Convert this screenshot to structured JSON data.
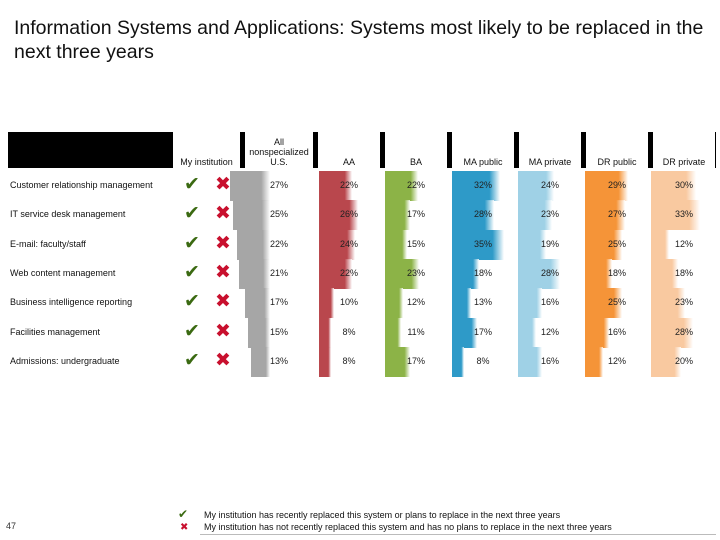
{
  "title": "Information Systems and Applications: Systems most likely to be replaced in the next three years",
  "page_number": "47",
  "colors": {
    "check": "#3b6a12",
    "cross": "#c8102e",
    "all_us": "#a6a6a6",
    "aa": "#b9474d",
    "ba": "#8cb347",
    "ma_public": "#2e9ac8",
    "ma_private": "#9fd1e6",
    "dr_public": "#f59438",
    "dr_private": "#f9c9a0"
  },
  "legend": {
    "check_icon": "check-icon",
    "cross_icon": "cross-icon",
    "check_text": "My institution has recently replaced this system or plans to replace in the next three years",
    "cross_text": "My institution has not recently replaced this system and has no plans to replace in the next three years"
  },
  "chart_data": {
    "type": "table",
    "title": "Information Systems and Applications: Systems most likely to be replaced in the next three years",
    "columns": [
      "My institution",
      "All nonspecialized U.S.",
      "AA",
      "BA",
      "MA public",
      "MA private",
      "DR public",
      "DR private"
    ],
    "rows": [
      "Customer relationship management",
      "IT service desk management",
      "E-mail: faculty/staff",
      "Web content management",
      "Business intelligence reporting",
      "Facilities management",
      "Admissions: undergraduate"
    ],
    "series": [
      {
        "name": "All nonspecialized U.S.",
        "values": [
          27,
          25,
          22,
          21,
          17,
          15,
          13
        ]
      },
      {
        "name": "AA",
        "values": [
          22,
          26,
          24,
          22,
          10,
          8,
          8
        ]
      },
      {
        "name": "BA",
        "values": [
          22,
          17,
          15,
          23,
          12,
          11,
          17
        ]
      },
      {
        "name": "MA public",
        "values": [
          32,
          28,
          35,
          18,
          13,
          17,
          8
        ]
      },
      {
        "name": "MA private",
        "values": [
          24,
          23,
          19,
          28,
          16,
          12,
          16
        ]
      },
      {
        "name": "DR public",
        "values": [
          29,
          27,
          25,
          18,
          25,
          16,
          12
        ]
      },
      {
        "name": "DR private",
        "values": [
          30,
          33,
          12,
          18,
          23,
          28,
          20
        ]
      }
    ],
    "value_suffix": "%",
    "bar_scale_max": 35
  }
}
